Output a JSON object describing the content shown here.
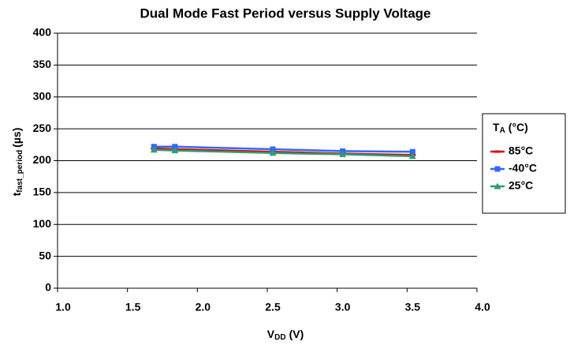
{
  "chart_data": {
    "type": "line",
    "title": "Dual Mode Fast Period versus Supply Voltage",
    "xlabel": {
      "main": "V",
      "sub": "DD",
      "unit": "(V)"
    },
    "ylabel": {
      "main": "t",
      "sub": "fast_period",
      "unit": "(µs)"
    },
    "legend_title": {
      "main": "T",
      "sub": "A",
      "unit": "(°C)"
    },
    "x": [
      1.65,
      1.8,
      2.5,
      3.0,
      3.5
    ],
    "series": [
      {
        "name": "85°C",
        "color": "#e00000",
        "marker": "dash",
        "values": [
          219,
          218,
          214,
          211,
          209
        ]
      },
      {
        "name": "-40°C",
        "color": "#3366ff",
        "marker": "square",
        "values": [
          222,
          222,
          218,
          215,
          214
        ]
      },
      {
        "name": "25°C",
        "color": "#2e9e6e",
        "marker": "triangle",
        "values": [
          217,
          216,
          212,
          210,
          207
        ]
      }
    ],
    "xlim": [
      1,
      4
    ],
    "xticks": [
      {
        "value": 1,
        "label": "1.0"
      },
      {
        "value": 1.5,
        "label": "1.5"
      },
      {
        "value": 2,
        "label": "2.0"
      },
      {
        "value": 2.5,
        "label": "2.5"
      },
      {
        "value": 3,
        "label": "3.0"
      },
      {
        "value": 3.5,
        "label": "3.5"
      },
      {
        "value": 4,
        "label": "4.0"
      }
    ],
    "ylim": [
      0,
      400
    ],
    "yticks": [
      0,
      50,
      100,
      150,
      200,
      250,
      300,
      350,
      400
    ],
    "grid": true,
    "legend": "right"
  }
}
